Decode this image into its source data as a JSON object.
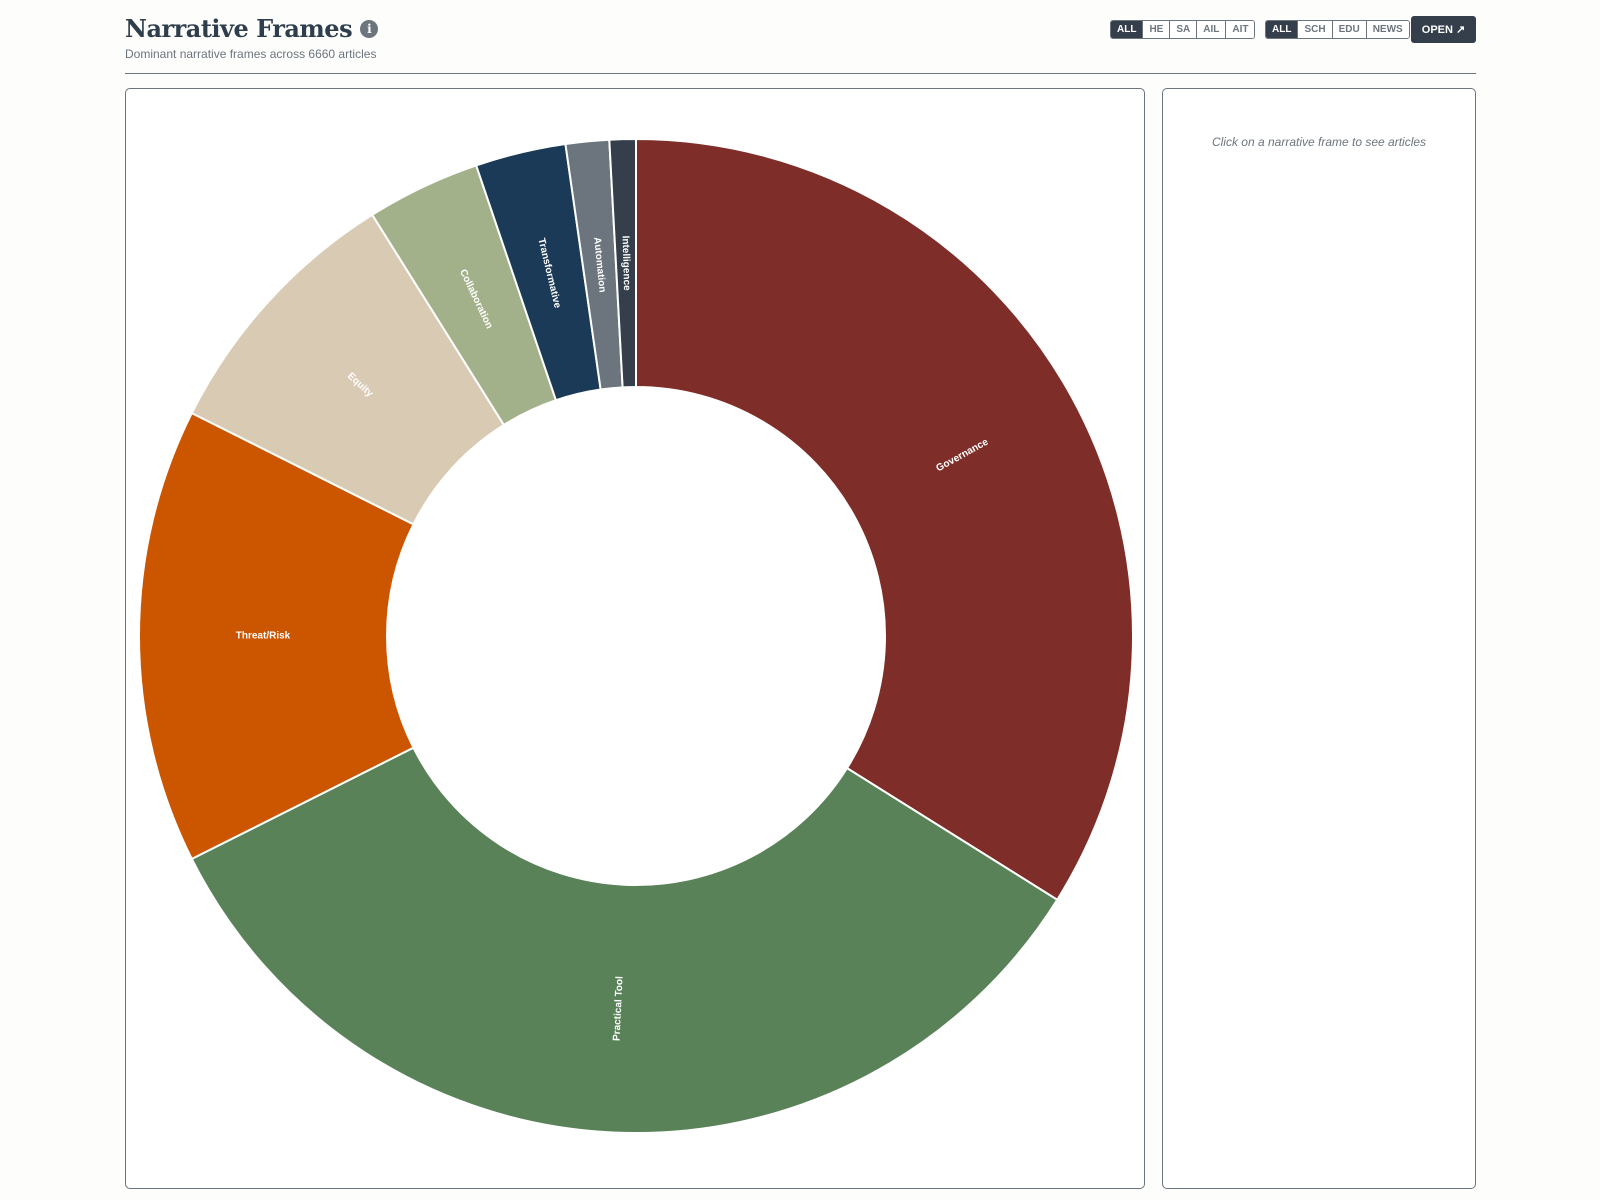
{
  "header": {
    "title": "Narrative Frames",
    "info_icon": "info-icon",
    "subtitle": "Dominant narrative frames across 6660 articles",
    "filter_group_1": [
      "ALL",
      "HE",
      "SA",
      "AIL",
      "AIT"
    ],
    "filter_group_1_active": "ALL",
    "filter_group_2": [
      "ALL",
      "SCH",
      "EDU",
      "NEWS"
    ],
    "filter_group_2_active": "ALL",
    "open_label": "OPEN ↗"
  },
  "side_panel": {
    "hint": "Click on a narrative frame to see articles"
  },
  "chart_data": {
    "type": "pie",
    "variant": "donut",
    "total": 6660,
    "categories": [
      "Governance",
      "Practical Tool",
      "Threat/Risk",
      "Equity",
      "Collaboration",
      "Transformative",
      "Automation",
      "Intelligence"
    ],
    "values": [
      2258,
      2244,
      986,
      579,
      246,
      196,
      94,
      57
    ],
    "colors": [
      "#7f2d28",
      "#5a8259",
      "#cc5500",
      "#d9cab3",
      "#a3b18a",
      "#1b3a57",
      "#6c757d",
      "#343f4b"
    ]
  }
}
